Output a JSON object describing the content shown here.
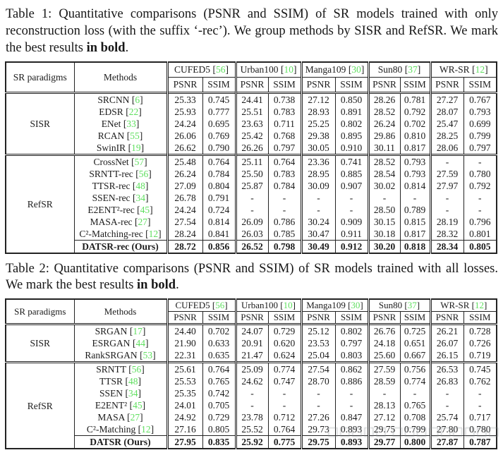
{
  "colors": {
    "citation_green": "#5fdf5f",
    "border": "#232323",
    "watermark_gray": "#8b9196"
  },
  "caption1": {
    "text": "Table 1: Quantitative comparisons (PSNR and SSIM) of SR models trained with only reconstruction loss (with the suffix ‘-rec’). We group methods by SISR and RefSR. We mark the best results ",
    "bold": "in bold",
    "suffix": "."
  },
  "caption2": {
    "text": "Table 2: Quantitative comparisons (PSNR and SSIM) of SR models trained with all losses. We mark the best results ",
    "bold": "in bold",
    "suffix": "."
  },
  "watermark": {
    "text": "□□□□□ □□□□□□□□□"
  },
  "tables": [
    {
      "corner_headers": [
        "SR paradigms",
        "Methods"
      ],
      "metric_headers": [
        "PSNR",
        "SSIM"
      ],
      "datasets": [
        {
          "name": "CUFED5",
          "cite": "56"
        },
        {
          "name": "Urban100",
          "cite": "10"
        },
        {
          "name": "Manga109",
          "cite": "30"
        },
        {
          "name": "Sun80",
          "cite": "37"
        },
        {
          "name": "WR-SR",
          "cite": "12"
        }
      ],
      "groups": [
        {
          "paradigm": "SISR",
          "rows": [
            {
              "method": "SRCNN",
              "cite": "6",
              "v": [
                "25.33",
                "0.745",
                "24.41",
                "0.738",
                "27.12",
                "0.850",
                "28.26",
                "0.781",
                "27.27",
                "0.767"
              ]
            },
            {
              "method": "EDSR",
              "cite": "22",
              "v": [
                "25.93",
                "0.777",
                "25.51",
                "0.783",
                "28.93",
                "0.891",
                "28.52",
                "0.792",
                "28.07",
                "0.793"
              ]
            },
            {
              "method": "ENet",
              "cite": "33",
              "v": [
                "24.24",
                "0.695",
                "23.63",
                "0.711",
                "25.25",
                "0.802",
                "26.24",
                "0.702",
                "25.47",
                "0.699"
              ]
            },
            {
              "method": "RCAN",
              "cite": "55",
              "v": [
                "26.06",
                "0.769",
                "25.42",
                "0.768",
                "29.38",
                "0.895",
                "29.86",
                "0.810",
                "28.25",
                "0.799"
              ]
            },
            {
              "method": "SwinIR",
              "cite": "19",
              "v": [
                "26.62",
                "0.790",
                "26.26",
                "0.797",
                "30.05",
                "0.910",
                "30.11",
                "0.817",
                "28.06",
                "0.797"
              ]
            }
          ]
        },
        {
          "paradigm": "RefSR",
          "rows": [
            {
              "method": "CrossNet",
              "cite": "57",
              "v": [
                "25.48",
                "0.764",
                "25.11",
                "0.764",
                "23.36",
                "0.741",
                "28.52",
                "0.793",
                "-",
                "-"
              ]
            },
            {
              "method": "SRNTT-rec",
              "cite": "56",
              "v": [
                "26.24",
                "0.784",
                "25.50",
                "0.783",
                "28.95",
                "0.885",
                "28.54",
                "0.793",
                "27.59",
                "0.780"
              ]
            },
            {
              "method": "TTSR-rec",
              "cite": "48",
              "v": [
                "27.09",
                "0.804",
                "25.87",
                "0.784",
                "30.09",
                "0.907",
                "30.02",
                "0.814",
                "27.97",
                "0.792"
              ]
            },
            {
              "method": "SSEN-rec",
              "cite": "34",
              "v": [
                "26.78",
                "0.791",
                "-",
                "-",
                "-",
                "-",
                "-",
                "-",
                "-",
                "-"
              ]
            },
            {
              "method": "E2ENT²-rec",
              "cite": "45",
              "v": [
                "24.24",
                "0.724",
                "-",
                "-",
                "-",
                "-",
                "28.50",
                "0.789",
                "-",
                "-"
              ]
            },
            {
              "method": "MASA-rec",
              "cite": "27",
              "v": [
                "27.54",
                "0.814",
                "26.09",
                "0.786",
                "30.24",
                "0.909",
                "30.15",
                "0.815",
                "28.19",
                "0.796"
              ]
            },
            {
              "method": "C²-Matching-rec",
              "cite": "12",
              "v": [
                "28.24",
                "0.841",
                "26.03",
                "0.785",
                "30.47",
                "0.911",
                "30.18",
                "0.817",
                "28.32",
                "0.801"
              ]
            }
          ]
        }
      ],
      "final_row": {
        "method": "DATSR-rec (Ours)",
        "cite": "",
        "v": [
          "28.72",
          "0.856",
          "26.52",
          "0.798",
          "30.49",
          "0.912",
          "30.20",
          "0.818",
          "28.34",
          "0.805"
        ]
      }
    },
    {
      "corner_headers": [
        "SR paradigms",
        "Methods"
      ],
      "metric_headers": [
        "PSNR",
        "SSIM"
      ],
      "datasets": [
        {
          "name": "CUFED5",
          "cite": "56"
        },
        {
          "name": "Urban100",
          "cite": "10"
        },
        {
          "name": "Manga109",
          "cite": "30"
        },
        {
          "name": "Sun80",
          "cite": "37"
        },
        {
          "name": "WR-SR",
          "cite": "12"
        }
      ],
      "groups": [
        {
          "paradigm": "SISR",
          "rows": [
            {
              "method": "SRGAN",
              "cite": "17",
              "v": [
                "24.40",
                "0.702",
                "24.07",
                "0.729",
                "25.12",
                "0.802",
                "26.76",
                "0.725",
                "26.21",
                "0.728"
              ]
            },
            {
              "method": "ESRGAN",
              "cite": "44",
              "v": [
                "21.90",
                "0.633",
                "20.91",
                "0.620",
                "23.53",
                "0.797",
                "24.18",
                "0.651",
                "26.07",
                "0.726"
              ]
            },
            {
              "method": "RankSRGAN",
              "cite": "53",
              "v": [
                "22.31",
                "0.635",
                "21.47",
                "0.624",
                "25.04",
                "0.803",
                "25.60",
                "0.667",
                "26.15",
                "0.719"
              ]
            }
          ]
        },
        {
          "paradigm": "RefSR",
          "rows": [
            {
              "method": "SRNTT",
              "cite": "56",
              "v": [
                "25.61",
                "0.764",
                "25.09",
                "0.774",
                "27.54",
                "0.862",
                "27.59",
                "0.756",
                "26.53",
                "0.745"
              ]
            },
            {
              "method": "TTSR",
              "cite": "48",
              "v": [
                "25.53",
                "0.765",
                "24.62",
                "0.747",
                "28.70",
                "0.886",
                "28.59",
                "0.774",
                "26.83",
                "0.762"
              ]
            },
            {
              "method": "SSEN",
              "cite": "34",
              "v": [
                "25.35",
                "0.742",
                "-",
                "-",
                "-",
                "-",
                "-",
                "-",
                "-",
                "-"
              ]
            },
            {
              "method": "E2ENT²",
              "cite": "45",
              "v": [
                "24.01",
                "0.705",
                "-",
                "-",
                "-",
                "-",
                "28.13",
                "0.765",
                "-",
                "-"
              ]
            },
            {
              "method": "MASA",
              "cite": "27",
              "v": [
                "24.92",
                "0.729",
                "23.78",
                "0.712",
                "27.26",
                "0.847",
                "27.12",
                "0.708",
                "25.74",
                "0.717"
              ]
            },
            {
              "method": "C²-Matching",
              "cite": "12",
              "v": [
                "27.16",
                "0.805",
                "25.52",
                "0.764",
                "29.73",
                "0.893",
                "29.75",
                "0.799",
                "27.80",
                "0.780"
              ]
            }
          ]
        }
      ],
      "final_row": {
        "method": "DATSR (Ours)",
        "cite": "",
        "v": [
          "27.95",
          "0.835",
          "25.92",
          "0.775",
          "29.75",
          "0.893",
          "29.77",
          "0.800",
          "27.87",
          "0.787"
        ]
      }
    }
  ]
}
